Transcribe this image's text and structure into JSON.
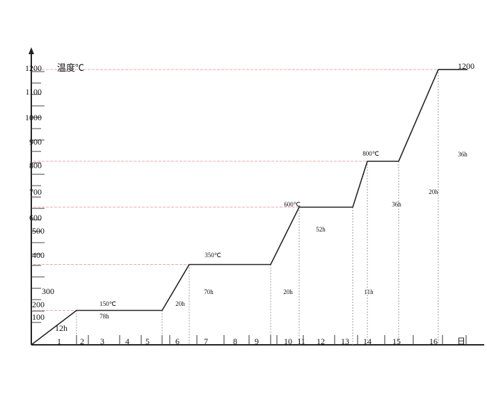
{
  "chart_data": {
    "type": "line",
    "ylabel": "温度℃",
    "y_tick_labels": [
      "1200",
      "1100",
      "1000",
      "900",
      "800",
      "700",
      "600",
      "500",
      "400",
      "300",
      "200",
      "100"
    ],
    "x_tick_labels": [
      "1",
      "2",
      "3",
      "4",
      "5",
      "6",
      "7",
      "8",
      "9",
      "10",
      "11",
      "12",
      "13",
      "14",
      "15",
      "16",
      "日"
    ],
    "grid": false,
    "reference_line_color": "#f4a6a6",
    "line_color": "#222222",
    "points": [
      {
        "hour": 0,
        "temp": 0
      },
      {
        "hour": 12,
        "temp": 150
      },
      {
        "hour": 90,
        "temp": 150
      },
      {
        "hour": 110,
        "temp": 350
      },
      {
        "hour": 180,
        "temp": 350
      },
      {
        "hour": 200,
        "temp": 600
      },
      {
        "hour": 252,
        "temp": 600
      },
      {
        "hour": 263,
        "temp": 800
      },
      {
        "hour": 299,
        "temp": 800
      },
      {
        "hour": 319,
        "temp": 1200
      },
      {
        "hour": 355,
        "temp": 1200
      }
    ],
    "annotations": [
      "12h",
      "78h",
      "150℃",
      "20h",
      "70h",
      "350℃",
      "20h",
      "600℃",
      "52h",
      "11h",
      "800℃",
      "36h",
      "20h",
      "36h",
      "1200"
    ]
  }
}
